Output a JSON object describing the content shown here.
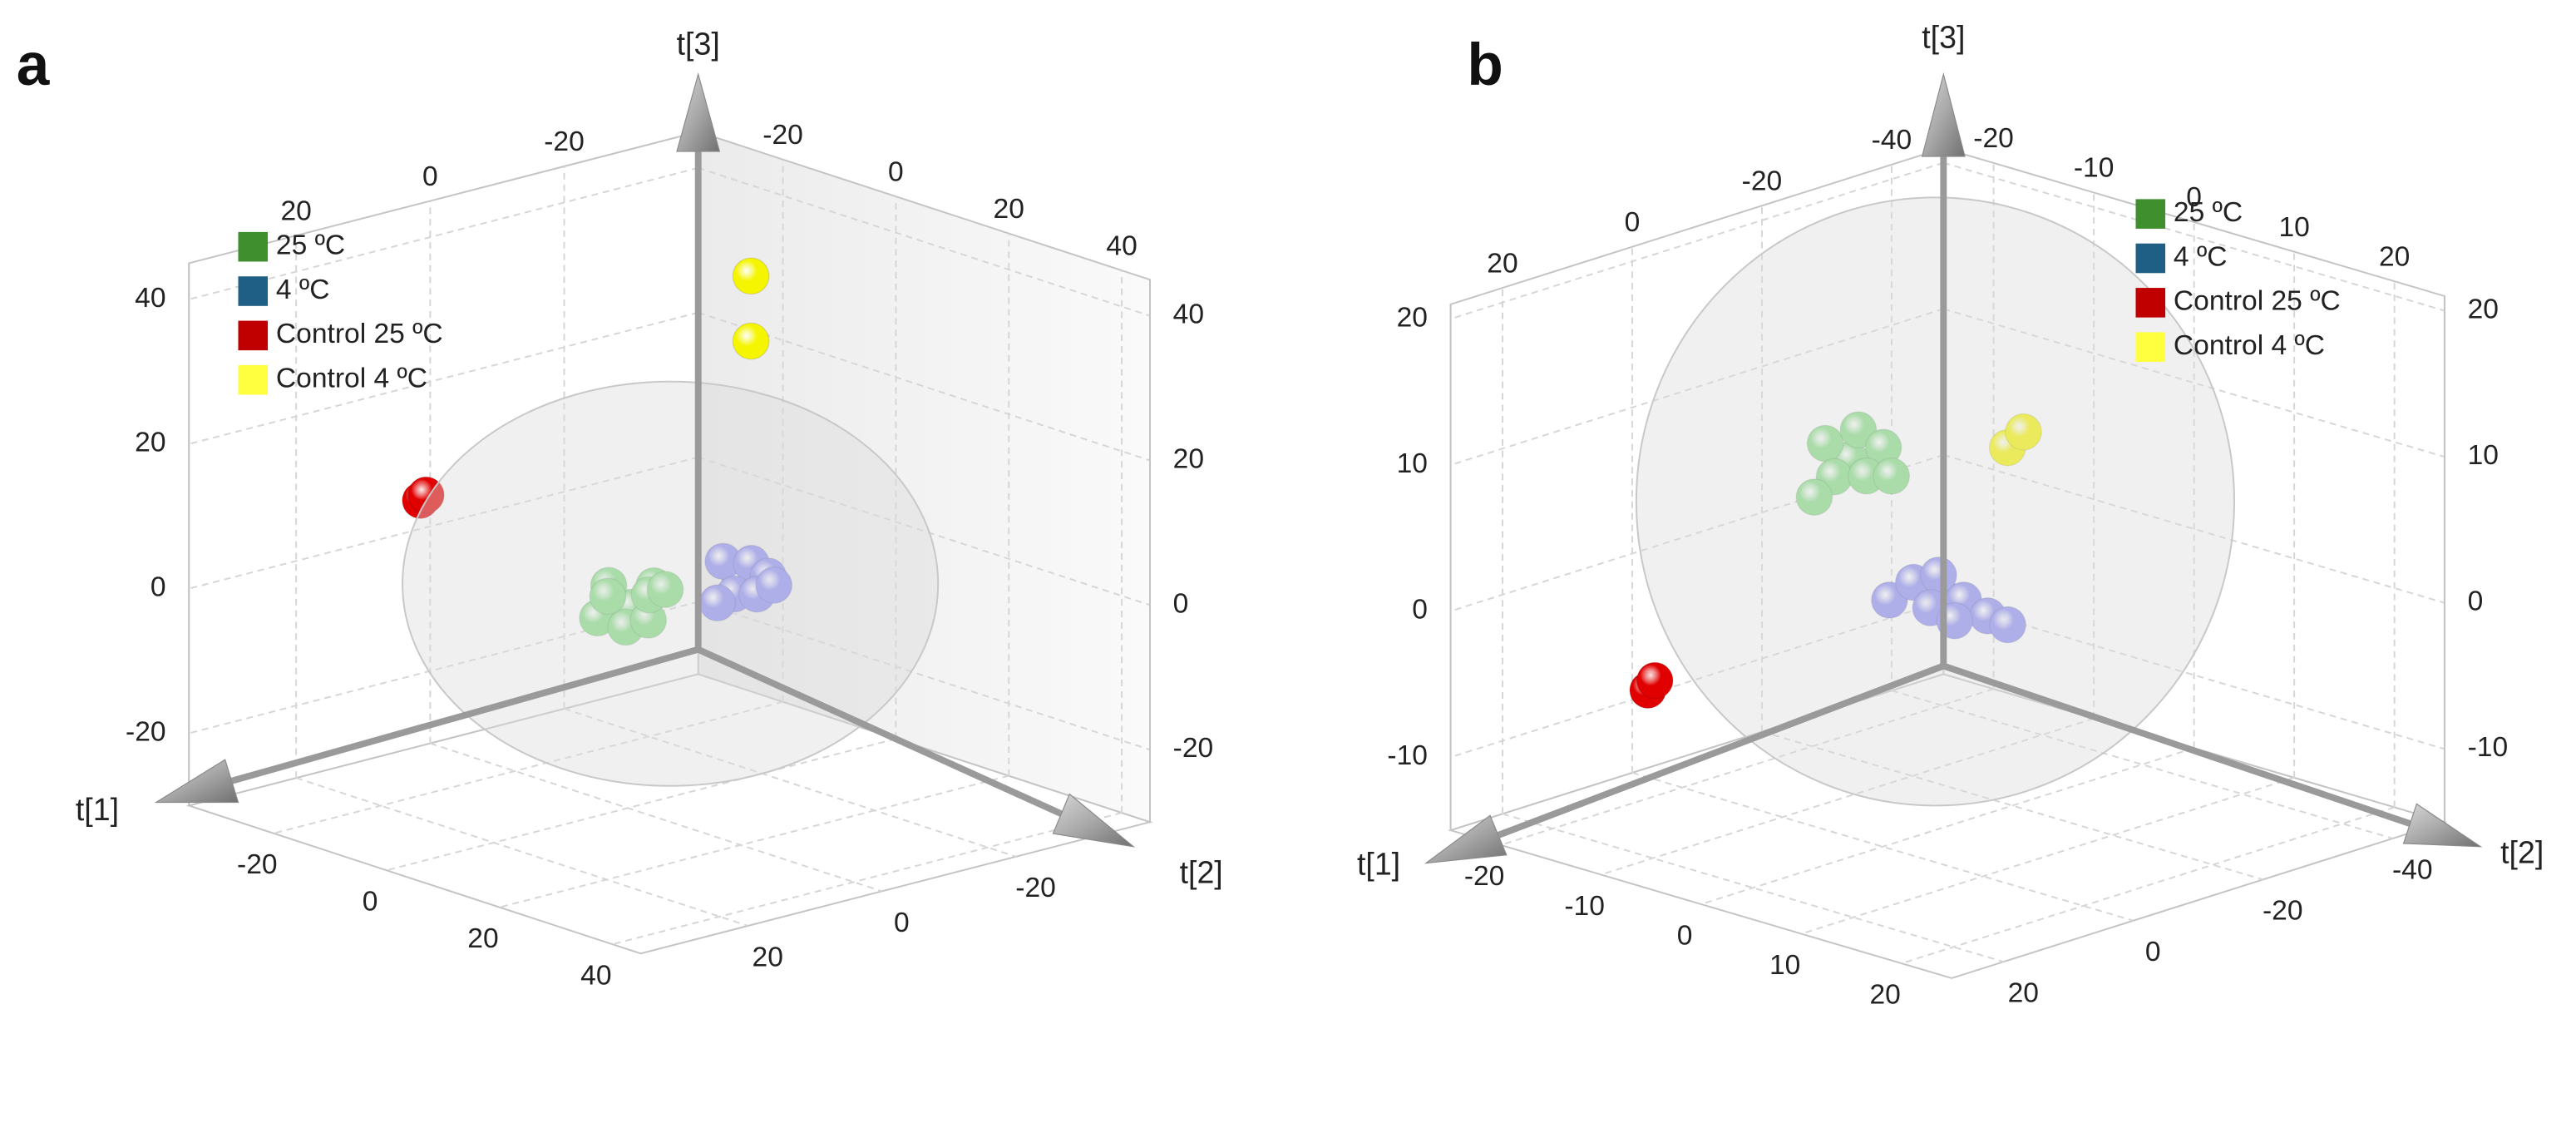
{
  "chart_data": [
    {
      "type": "scatter3d",
      "panel_label": "a",
      "xlabel": "t[1]",
      "ylabel": "t[2]",
      "zlabel": "t[3]",
      "xlim": [
        -35,
        45
      ],
      "ylim": [
        -40,
        36
      ],
      "zlim": [
        -30,
        45
      ],
      "xticks": [
        -20,
        0,
        20,
        40
      ],
      "yticks": [
        -20,
        0,
        20
      ],
      "zticks": [
        -20,
        0,
        20,
        40
      ],
      "grid": true,
      "legend": "upper left",
      "series": [
        {
          "name": "25 ºC",
          "color": "#3f8f2f",
          "marker_color": "#86dc86",
          "x": [
            3,
            -1,
            7,
            -3,
            2,
            6,
            0,
            5,
            9
          ],
          "y": [
            2,
            2,
            2,
            2,
            2,
            2,
            3,
            1,
            2
          ],
          "z": [
            -1,
            1,
            3,
            -4,
            -4,
            -2,
            0,
            1,
            3
          ]
        },
        {
          "name": "4 ºC",
          "color": "#1f5f86",
          "marker_color": "#8e8ef2",
          "x": [
            8,
            5,
            10,
            13,
            7,
            11,
            4,
            14
          ],
          "y": [
            -10,
            -10,
            -10,
            -10,
            -10,
            -10,
            -10,
            -10
          ],
          "z": [
            1,
            3,
            4,
            3,
            -1,
            0,
            -3,
            2
          ]
        },
        {
          "name": "Control 25 ºC",
          "color": "#c00000",
          "marker_color": "#e00000",
          "x": [
            -13,
            -12
          ],
          "y": [
            20,
            20
          ],
          "z": [
            14,
            15
          ]
        },
        {
          "name": "Control 4 ºC",
          "color": "#ffff40",
          "marker_color": "#f5f500",
          "x": [
            4,
            4
          ],
          "y": [
            -15,
            -15
          ],
          "z": [
            41,
            32
          ]
        }
      ]
    },
    {
      "type": "scatter3d",
      "panel_label": "b",
      "xlabel": "t[1]",
      "ylabel": "t[2]",
      "zlabel": "t[3]",
      "xlim": [
        -25,
        25
      ],
      "ylim": [
        -48,
        28
      ],
      "zlim": [
        -15,
        21
      ],
      "xticks": [
        -20,
        -10,
        0,
        10,
        20
      ],
      "yticks": [
        -40,
        -20,
        0,
        20
      ],
      "zticks": [
        -10,
        0,
        10,
        20
      ],
      "grid": true,
      "legend": "upper right",
      "series": [
        {
          "name": "25 ºC",
          "color": "#3f8f2f",
          "marker_color": "#86dc86",
          "x": [
            0,
            -2.5,
            0.8,
            3.3,
            -1.6,
            1.6,
            4.1,
            -3.6
          ],
          "y": [
            5,
            5,
            5,
            5,
            5,
            5,
            5,
            5
          ],
          "z": [
            12.2,
            12.8,
            14.4,
            13.7,
            10.7,
            11.4,
            11.9,
            8.9
          ]
        },
        {
          "name": "4 ºC",
          "color": "#1f5f86",
          "marker_color": "#8e8ef2",
          "x": [
            -0.9,
            -5.8,
            -3.4,
            -0.9,
            -1.7,
            1.6,
            4,
            6,
            0.7
          ],
          "y": [
            -10,
            -10,
            -10,
            -10,
            -10,
            -10,
            -10,
            -10,
            -10
          ],
          "z": [
            0.9,
            -0.7,
            1,
            2,
            -0.4,
            0.8,
            0.2,
            0,
            -0.8
          ]
        },
        {
          "name": "Control 25 ºC",
          "color": "#c00000",
          "marker_color": "#e00000",
          "x": [
            -10.5,
            -9.8
          ],
          "y": [
            20,
            20
          ],
          "z": [
            -3.6,
            -2.8
          ]
        },
        {
          "name": "Control 4 ºC",
          "color": "#ffff40",
          "marker_color": "#f5f500",
          "x": [
            -0.5,
            1.1
          ],
          "y": [
            -20,
            -20
          ],
          "z": [
            9.4,
            10.8
          ]
        }
      ]
    }
  ]
}
